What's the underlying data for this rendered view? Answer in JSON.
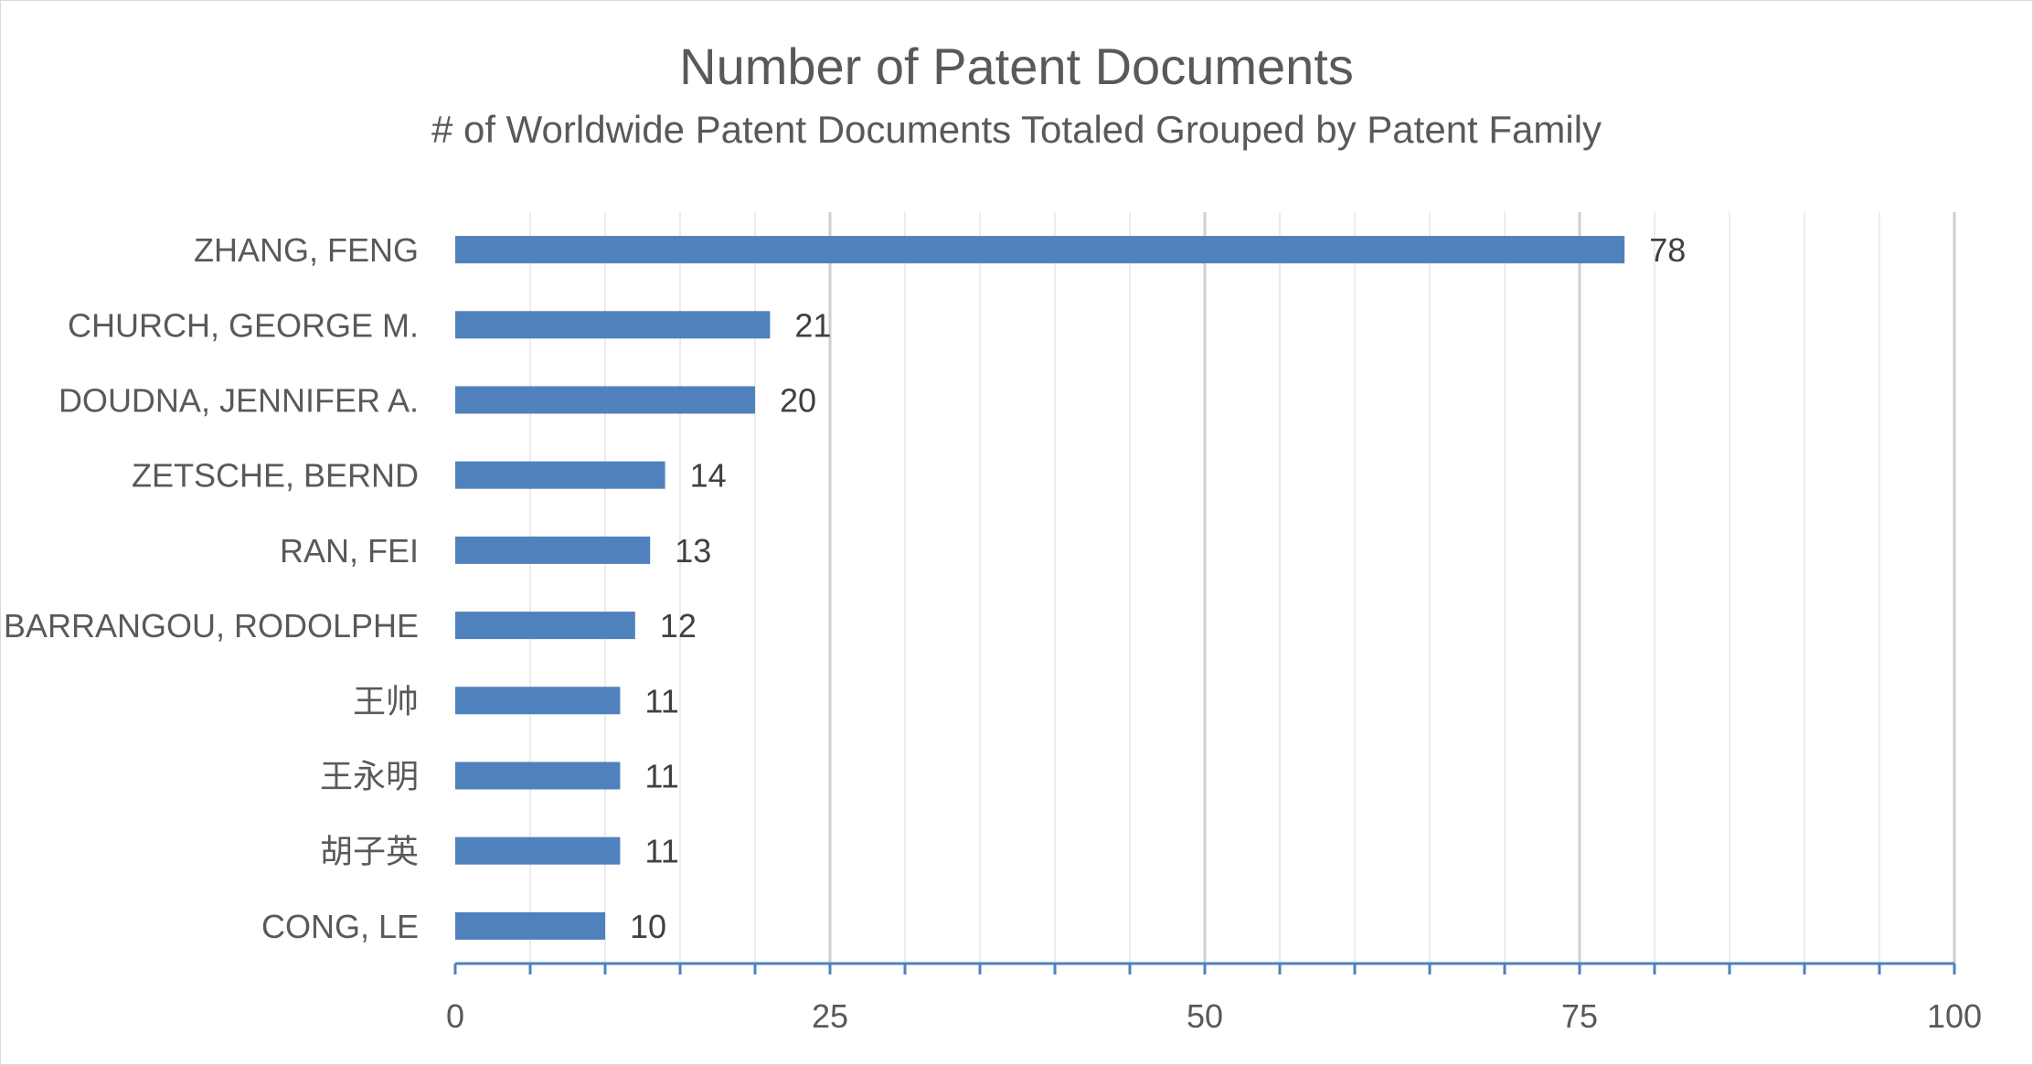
{
  "chart_data": {
    "type": "bar",
    "orientation": "horizontal",
    "title": "Number of Patent Documents",
    "subtitle": "# of Worldwide Patent Documents Totaled Grouped by Patent Family",
    "xlabel": "",
    "ylabel": "",
    "categories": [
      "ZHANG, FENG",
      "CHURCH, GEORGE M.",
      "DOUDNA, JENNIFER A.",
      "ZETSCHE, BERND",
      "RAN, FEI",
      "BARRANGOU, RODOLPHE",
      "王帅",
      "王永明",
      "胡子英",
      "CONG, LE"
    ],
    "values": [
      78,
      21,
      20,
      14,
      13,
      12,
      11,
      11,
      11,
      10
    ],
    "xlim": [
      0,
      100
    ],
    "x_ticks": [
      0,
      25,
      50,
      75,
      100
    ],
    "minor_tick_step": 5,
    "grid": true,
    "data_labels": true,
    "legend": "none",
    "bar_color": "#4f81bd",
    "grid_color": "#d9d9d9",
    "axis_color": "#4f81bd",
    "text_color": "#595959",
    "label_color": "#404040"
  }
}
